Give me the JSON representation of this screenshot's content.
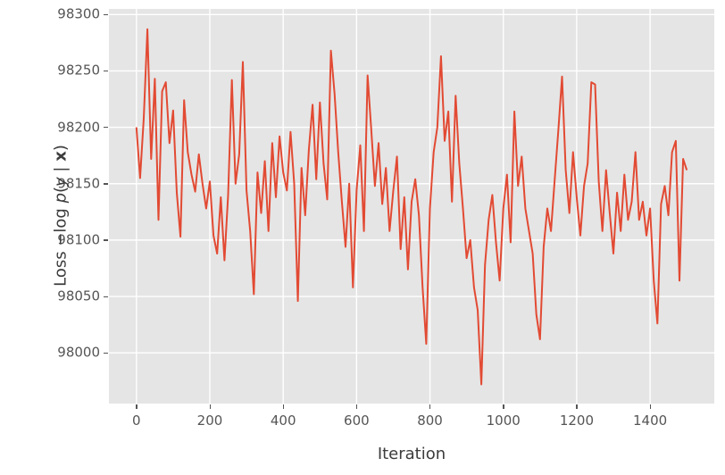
{
  "figure": {
    "background": "#ffffff"
  },
  "chart_data": {
    "type": "line",
    "title": "",
    "xlabel": "Iteration",
    "ylabel": "Loss −log p(y | x)",
    "ylabel_parts": [
      "Loss −log ",
      "p",
      "(",
      "y",
      " | ",
      "x",
      ")"
    ],
    "legend": "none",
    "grid": true,
    "style": "ggplot",
    "line_color": "#E24A33",
    "plot_background_color": "#E5E5E5",
    "grid_color": "#FFFFFF",
    "tick_color": "#555555",
    "xlim": [
      -75,
      1575
    ],
    "ylim": [
      97955,
      98305
    ],
    "x_ticks": [
      0,
      200,
      400,
      600,
      800,
      1000,
      1200,
      1400
    ],
    "y_ticks": [
      98000,
      98050,
      98100,
      98150,
      98200,
      98250,
      98300
    ],
    "x_start": 0,
    "x_step": 10,
    "values": [
      98200,
      98155,
      98208,
      98287,
      98172,
      98243,
      98118,
      98232,
      98240,
      98186,
      98215,
      98142,
      98103,
      98224,
      98178,
      98158,
      98143,
      98176,
      98150,
      98128,
      98152,
      98104,
      98088,
      98138,
      98082,
      98140,
      98242,
      98150,
      98176,
      98258,
      98144,
      98108,
      98052,
      98160,
      98124,
      98170,
      98108,
      98186,
      98138,
      98192,
      98160,
      98144,
      98196,
      98150,
      98046,
      98164,
      98122,
      98180,
      98220,
      98154,
      98222,
      98168,
      98136,
      98268,
      98230,
      98178,
      98134,
      98094,
      98150,
      98058,
      98144,
      98184,
      98108,
      98246,
      98198,
      98148,
      98186,
      98132,
      98164,
      98108,
      98144,
      98174,
      98092,
      98138,
      98074,
      98134,
      98154,
      98122,
      98058,
      98008,
      98128,
      98178,
      98200,
      98263,
      98188,
      98214,
      98134,
      98228,
      98168,
      98128,
      98084,
      98100,
      98058,
      98038,
      97972,
      98078,
      98118,
      98140,
      98098,
      98064,
      98128,
      98158,
      98098,
      98214,
      98148,
      98174,
      98128,
      98108,
      98088,
      98034,
      98012,
      98094,
      98128,
      98108,
      98154,
      98198,
      98245,
      98162,
      98124,
      98178,
      98138,
      98104,
      98148,
      98168,
      98240,
      98238,
      98152,
      98108,
      98162,
      98124,
      98088,
      98142,
      98108,
      98158,
      98118,
      98134,
      98178,
      98118,
      98134,
      98104,
      98128,
      98064,
      98026,
      98132,
      98148,
      98122,
      98178,
      98188,
      98064,
      98172,
      98162
    ]
  }
}
